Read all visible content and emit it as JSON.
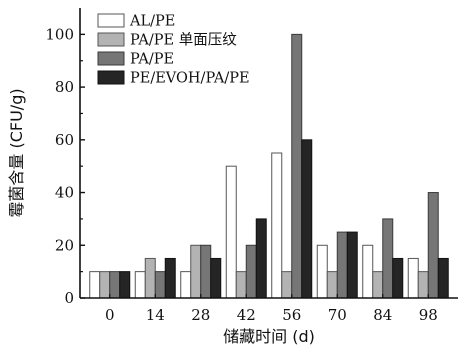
{
  "chart_data": {
    "type": "bar",
    "title": "",
    "xlabel": "储藏时间 (d)",
    "ylabel": "霉菌含量 (CFU/g)",
    "categories": [
      "0",
      "14",
      "28",
      "42",
      "56",
      "70",
      "84",
      "98"
    ],
    "ylim": [
      0,
      110
    ],
    "yticks": [
      "0",
      "20",
      "40",
      "60",
      "80",
      "100"
    ],
    "grid": false,
    "legend_position": "top-left",
    "series": [
      {
        "name": "AL/PE",
        "values": [
          10,
          10,
          10,
          50,
          55,
          20,
          20,
          15
        ],
        "color": "#ffffff",
        "stroke": "#555555"
      },
      {
        "name": "PA/PE 单面压纹",
        "values": [
          10,
          15,
          20,
          10,
          10,
          10,
          10,
          10
        ],
        "color": "#b3b3b3",
        "stroke": "#555555"
      },
      {
        "name": "PA/PE",
        "values": [
          10,
          10,
          20,
          20,
          100,
          25,
          30,
          40
        ],
        "color": "#767676",
        "stroke": "#3a3a3a"
      },
      {
        "name": "PE/EVOH/PA/PE",
        "values": [
          10,
          15,
          15,
          30,
          60,
          25,
          15,
          15
        ],
        "color": "#252525",
        "stroke": "#111111"
      }
    ]
  }
}
